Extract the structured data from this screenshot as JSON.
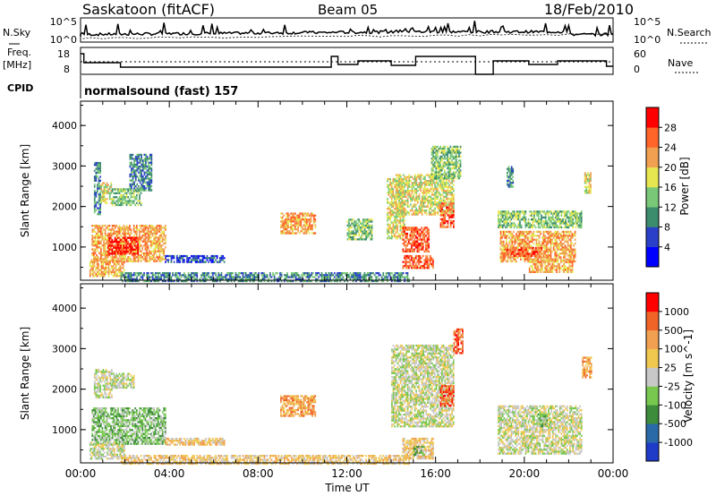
{
  "header": {
    "site": "Saskatoon (fitACF)",
    "beam": "Beam 05",
    "date": "18/Feb/2010"
  },
  "noise_panel": {
    "left_label": "N.Sky",
    "right_label": "N.Search",
    "left_top_tick": "10^5",
    "left_bottom_tick": "10^0",
    "right_top_tick": "10^5",
    "right_bottom_tick": "10^0"
  },
  "freq_panel": {
    "label_line1": "Freq.",
    "label_line2": "[MHz]",
    "left_ticks": [
      "18",
      "8"
    ],
    "right_ticks": [
      "60",
      "0"
    ],
    "right_label": "Nave"
  },
  "cpid_panel": {
    "label": "CPID",
    "value": "normalsound (fast) 157"
  },
  "chart_data": [
    {
      "type": "heatmap",
      "name": "power",
      "ylabel": "Slant Range [km]",
      "yticks": [
        "4000",
        "3000",
        "2000",
        "1000"
      ],
      "ylim": [
        180,
        4600
      ],
      "colorbar": {
        "label": "Power [dB]",
        "ticks": [
          "28",
          "24",
          "20",
          "16",
          "12",
          "8",
          "4"
        ],
        "colors": [
          "#0000ff",
          "#2a40c8",
          "#3c8c6e",
          "#78c878",
          "#e6e650",
          "#f0a050",
          "#ff6428",
          "#ff0000"
        ]
      },
      "regions": [
        {
          "x": [
            0.6,
            0.9
          ],
          "y": [
            1800,
            3100
          ],
          "v": 2
        },
        {
          "x": [
            0.9,
            1.4
          ],
          "y": [
            2100,
            2600
          ],
          "v": 4
        },
        {
          "x": [
            1.4,
            2.7
          ],
          "y": [
            2050,
            2450
          ],
          "v": 3
        },
        {
          "x": [
            2.2,
            3.2
          ],
          "y": [
            2400,
            3300
          ],
          "v": 2
        },
        {
          "x": [
            0.5,
            3.8
          ],
          "y": [
            650,
            1550
          ],
          "v": 5
        },
        {
          "x": [
            1.2,
            2.6
          ],
          "y": [
            850,
            1250
          ],
          "v": 7
        },
        {
          "x": [
            0.4,
            2.0
          ],
          "y": [
            300,
            700
          ],
          "v": 5
        },
        {
          "x": [
            3.8,
            6.5
          ],
          "y": [
            650,
            800
          ],
          "v": 1
        },
        {
          "x": [
            1.8,
            14.8
          ],
          "y": [
            180,
            380
          ],
          "v": 2
        },
        {
          "x": [
            9.0,
            10.6
          ],
          "y": [
            1350,
            1850
          ],
          "v": 5
        },
        {
          "x": [
            12.0,
            13.1
          ],
          "y": [
            1200,
            1700
          ],
          "v": 3
        },
        {
          "x": [
            13.8,
            14.6
          ],
          "y": [
            1200,
            2700
          ],
          "v": 4
        },
        {
          "x": [
            14.5,
            15.7
          ],
          "y": [
            900,
            1500
          ],
          "v": 6
        },
        {
          "x": [
            14.5,
            15.9
          ],
          "y": [
            500,
            800
          ],
          "v": 6
        },
        {
          "x": [
            14.2,
            16.8
          ],
          "y": [
            1800,
            2800
          ],
          "v": 4
        },
        {
          "x": [
            15.8,
            17.1
          ],
          "y": [
            2700,
            3500
          ],
          "v": 3
        },
        {
          "x": [
            16.2,
            16.8
          ],
          "y": [
            1500,
            2100
          ],
          "v": 6
        },
        {
          "x": [
            18.9,
            22.3
          ],
          "y": [
            650,
            1400
          ],
          "v": 5
        },
        {
          "x": [
            19.2,
            20.8
          ],
          "y": [
            800,
            1000
          ],
          "v": 6
        },
        {
          "x": [
            20.2,
            22.2
          ],
          "y": [
            400,
            700
          ],
          "v": 5
        },
        {
          "x": [
            18.8,
            22.6
          ],
          "y": [
            1500,
            1900
          ],
          "v": 3
        },
        {
          "x": [
            22.7,
            23.0
          ],
          "y": [
            2350,
            2850
          ],
          "v": 4
        },
        {
          "x": [
            19.2,
            19.5
          ],
          "y": [
            2500,
            3000
          ],
          "v": 2
        }
      ]
    },
    {
      "type": "heatmap",
      "name": "velocity",
      "xlabel": "Time UT",
      "ylabel": "Slant Range [km]",
      "xticks": [
        "00:00",
        "04:00",
        "08:00",
        "12:00",
        "16:00",
        "20:00",
        "00:00"
      ],
      "yticks": [
        "4000",
        "3000",
        "2000",
        "1000"
      ],
      "xlim": [
        0,
        24
      ],
      "ylim": [
        180,
        4600
      ],
      "colorbar": {
        "label": "Velocity [m s^-1]",
        "ticks": [
          "1000",
          "500",
          "100",
          "25",
          "-25",
          "-100",
          "-500",
          "-1000"
        ],
        "colors": [
          "#1e3cc8",
          "#2a6aa8",
          "#3c8c3c",
          "#78c850",
          "#c8c8c8",
          "#f0c850",
          "#f0a050",
          "#f06428",
          "#ff0000"
        ]
      },
      "regions": [
        {
          "x": [
            0.6,
            1.4
          ],
          "y": [
            1800,
            2500
          ],
          "v": 4
        },
        {
          "x": [
            1.4,
            2.4
          ],
          "y": [
            2050,
            2400
          ],
          "v": 4
        },
        {
          "x": [
            0.5,
            3.8
          ],
          "y": [
            650,
            1550
          ],
          "v": 3
        },
        {
          "x": [
            0.4,
            2.0
          ],
          "y": [
            300,
            700
          ],
          "v": 4
        },
        {
          "x": [
            3.8,
            6.5
          ],
          "y": [
            650,
            800
          ],
          "v": 5
        },
        {
          "x": [
            1.8,
            14.8
          ],
          "y": [
            180,
            380
          ],
          "v": 5
        },
        {
          "x": [
            9.0,
            10.6
          ],
          "y": [
            1350,
            1850
          ],
          "v": 6
        },
        {
          "x": [
            14.0,
            16.8
          ],
          "y": [
            1100,
            3100
          ],
          "v": 4
        },
        {
          "x": [
            14.5,
            15.9
          ],
          "y": [
            300,
            800
          ],
          "v": 5
        },
        {
          "x": [
            15.0,
            15.5
          ],
          "y": [
            400,
            600
          ],
          "v": 3
        },
        {
          "x": [
            16.2,
            16.8
          ],
          "y": [
            1600,
            2100
          ],
          "v": 7
        },
        {
          "x": [
            16.8,
            17.2
          ],
          "y": [
            2900,
            3500
          ],
          "v": 7
        },
        {
          "x": [
            18.8,
            22.6
          ],
          "y": [
            400,
            1600
          ],
          "v": 4
        },
        {
          "x": [
            20.6,
            21.0
          ],
          "y": [
            1100,
            1400
          ],
          "v": 3
        },
        {
          "x": [
            22.6,
            23.0
          ],
          "y": [
            2300,
            2800
          ],
          "v": 6
        }
      ]
    }
  ]
}
